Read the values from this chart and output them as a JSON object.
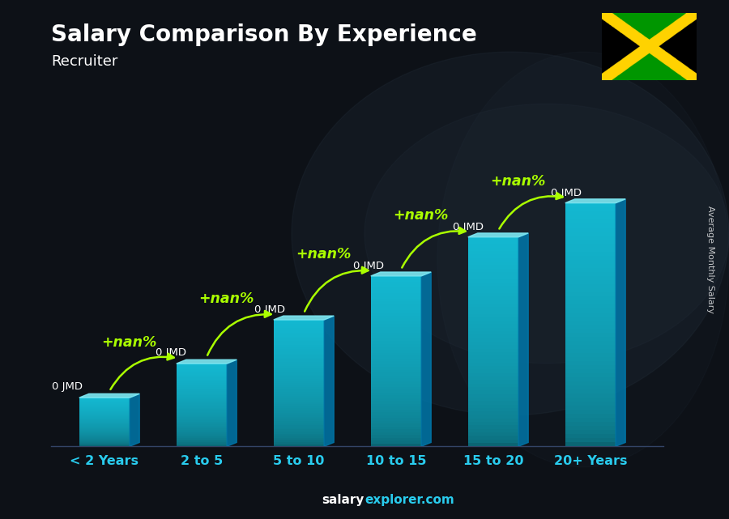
{
  "title": "Salary Comparison By Experience",
  "subtitle": "Recruiter",
  "categories": [
    "< 2 Years",
    "2 to 5",
    "5 to 10",
    "10 to 15",
    "15 to 20",
    "20+ Years"
  ],
  "bar_heights": [
    1.0,
    1.7,
    2.6,
    3.5,
    4.3,
    5.0
  ],
  "bar_labels": [
    "0 JMD",
    "0 JMD",
    "0 JMD",
    "0 JMD",
    "0 JMD",
    "0 JMD"
  ],
  "pct_labels": [
    "+nan%",
    "+nan%",
    "+nan%",
    "+nan%",
    "+nan%"
  ],
  "bar_color_main": "#29b6d4",
  "bar_color_light": "#4dd0e8",
  "bar_color_top": "#7eeaf5",
  "bar_color_side": "#0077aa",
  "bg_color": "#111122",
  "title_color": "#ffffff",
  "subtitle_color": "#ffffff",
  "label_color": "#ffffff",
  "xlabel_color": "#29ccee",
  "pct_color": "#aaff00",
  "ylabel_text": "Average Monthly Salary",
  "footer_salary": "salary",
  "footer_explorer": "explorer.com"
}
